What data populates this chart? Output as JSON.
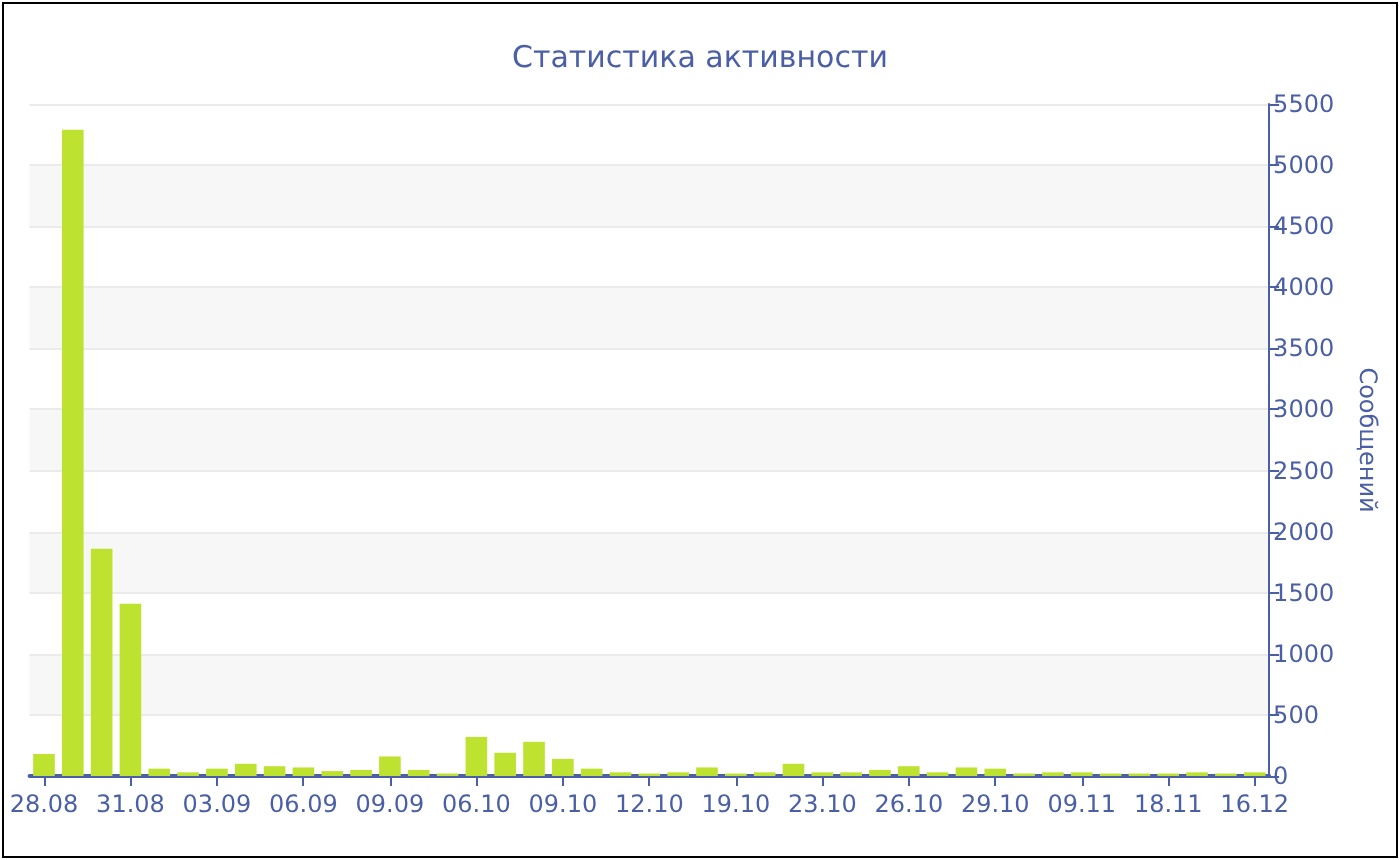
{
  "chart_data": {
    "type": "bar",
    "title": "Статистика активности",
    "ylabel": "Сообщений",
    "categories": [
      "28.08",
      null,
      null,
      "31.08",
      null,
      null,
      "03.09",
      null,
      null,
      "06.09",
      null,
      null,
      "09.09",
      null,
      null,
      "06.10",
      null,
      null,
      "09.10",
      null,
      null,
      "12.10",
      null,
      null,
      "19.10",
      null,
      null,
      "23.10",
      null,
      null,
      "26.10",
      null,
      null,
      "29.10",
      null,
      null,
      "09.11",
      null,
      null,
      "18.11",
      null,
      null,
      "16.12"
    ],
    "values": [
      180,
      5290,
      1860,
      1410,
      60,
      30,
      60,
      100,
      80,
      70,
      40,
      50,
      160,
      50,
      20,
      320,
      190,
      280,
      140,
      60,
      30,
      20,
      30,
      70,
      20,
      30,
      100,
      30,
      30,
      50,
      80,
      30,
      70,
      60,
      20,
      30,
      30,
      20,
      20,
      20,
      30,
      20,
      30
    ],
    "color": "#bde22f",
    "ylim": [
      0,
      5500
    ],
    "yticks": [
      0,
      500,
      1000,
      1500,
      2000,
      2500,
      3000,
      3500,
      4000,
      4500,
      5000,
      5500
    ],
    "grid": "y"
  }
}
